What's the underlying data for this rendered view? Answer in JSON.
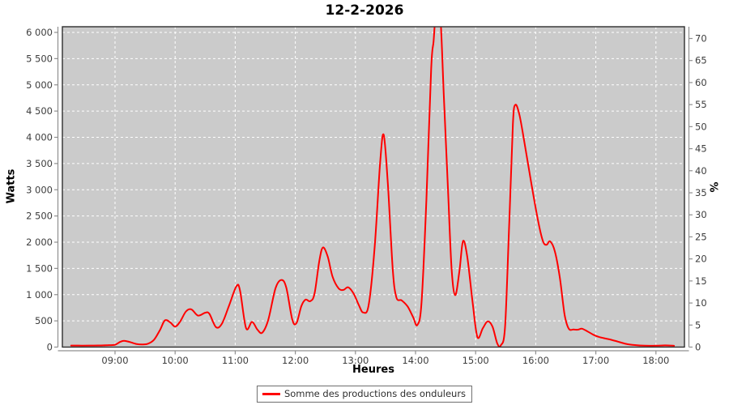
{
  "title": "12-2-2026",
  "legend": {
    "series_label": "Somme des productions des onduleurs",
    "swatch_color": "#ff0000"
  },
  "axes": {
    "y_left": {
      "label": "Watts",
      "tick_values": [
        0,
        500,
        1000,
        1500,
        2000,
        2500,
        3000,
        3500,
        4000,
        4500,
        5000,
        5500,
        6000
      ],
      "tick_labels": [
        "0",
        "500",
        "1 000",
        "1 500",
        "2 000",
        "2 500",
        "3 000",
        "3 500",
        "4 000",
        "4 500",
        "5 000",
        "5 500",
        "6 000"
      ]
    },
    "y_right": {
      "label": "%",
      "tick_values": [
        0,
        5,
        10,
        15,
        20,
        25,
        30,
        35,
        40,
        45,
        50,
        55,
        60,
        65,
        70
      ],
      "tick_labels": [
        "0",
        "5",
        "10",
        "15",
        "20",
        "25",
        "30",
        "35",
        "40",
        "45",
        "50",
        "55",
        "60",
        "65",
        "70"
      ]
    },
    "x": {
      "label": "Heures",
      "tick_values": [
        9,
        10,
        11,
        12,
        13,
        14,
        15,
        16,
        17,
        18
      ],
      "tick_labels": [
        "09:00",
        "10:00",
        "11:00",
        "12:00",
        "13:00",
        "14:00",
        "15:00",
        "16:00",
        "17:00",
        "18:00"
      ]
    }
  },
  "colors": {
    "plot_background": "#cbcbcb",
    "gridline": "#ffffff",
    "series_line": "#ff0000",
    "plot_border": "#2e2e2e",
    "axis_line": "#8f8f8f",
    "tick_label": "#3d3d3d"
  },
  "chart_data": {
    "type": "line",
    "title": "12-2-2026",
    "xlabel": "Heures",
    "ylabel": "Watts",
    "ylabel_secondary": "%",
    "x_unit": "decimal_hours",
    "x_range": [
      8.12,
      18.47
    ],
    "ylim_watts": [
      0,
      6108
    ],
    "ylim_percent": [
      0,
      72
    ],
    "grid": true,
    "legend_position": "bottom",
    "series": [
      {
        "name": "Somme des productions des onduleurs",
        "color": "#ff0000",
        "points_time_watts": [
          [
            8.27,
            30
          ],
          [
            8.45,
            28
          ],
          [
            8.65,
            30
          ],
          [
            8.85,
            34
          ],
          [
            9.0,
            45
          ],
          [
            9.08,
            95
          ],
          [
            9.15,
            120
          ],
          [
            9.25,
            95
          ],
          [
            9.35,
            60
          ],
          [
            9.45,
            50
          ],
          [
            9.55,
            65
          ],
          [
            9.65,
            140
          ],
          [
            9.75,
            330
          ],
          [
            9.83,
            510
          ],
          [
            9.92,
            470
          ],
          [
            10.0,
            390
          ],
          [
            10.08,
            480
          ],
          [
            10.18,
            680
          ],
          [
            10.27,
            720
          ],
          [
            10.38,
            600
          ],
          [
            10.5,
            655
          ],
          [
            10.57,
            635
          ],
          [
            10.68,
            380
          ],
          [
            10.78,
            450
          ],
          [
            10.9,
            800
          ],
          [
            11.02,
            1160
          ],
          [
            11.08,
            1080
          ],
          [
            11.18,
            360
          ],
          [
            11.28,
            480
          ],
          [
            11.37,
            330
          ],
          [
            11.45,
            275
          ],
          [
            11.55,
            520
          ],
          [
            11.67,
            1120
          ],
          [
            11.77,
            1280
          ],
          [
            11.85,
            1130
          ],
          [
            11.95,
            520
          ],
          [
            12.02,
            460
          ],
          [
            12.1,
            780
          ],
          [
            12.17,
            905
          ],
          [
            12.25,
            875
          ],
          [
            12.32,
            1020
          ],
          [
            12.4,
            1650
          ],
          [
            12.46,
            1900
          ],
          [
            12.54,
            1720
          ],
          [
            12.62,
            1340
          ],
          [
            12.72,
            1120
          ],
          [
            12.8,
            1090
          ],
          [
            12.88,
            1140
          ],
          [
            12.97,
            1020
          ],
          [
            13.06,
            790
          ],
          [
            13.13,
            660
          ],
          [
            13.22,
            800
          ],
          [
            13.32,
            1900
          ],
          [
            13.41,
            3500
          ],
          [
            13.47,
            4050
          ],
          [
            13.54,
            3100
          ],
          [
            13.62,
            1500
          ],
          [
            13.68,
            950
          ],
          [
            13.77,
            890
          ],
          [
            13.87,
            770
          ],
          [
            13.96,
            570
          ],
          [
            14.03,
            420
          ],
          [
            14.1,
            850
          ],
          [
            14.18,
            2800
          ],
          [
            14.26,
            5300
          ],
          [
            14.3,
            5830
          ],
          [
            14.34,
            6350
          ],
          [
            14.41,
            6350
          ],
          [
            14.47,
            4800
          ],
          [
            14.54,
            3000
          ],
          [
            14.6,
            1500
          ],
          [
            14.66,
            990
          ],
          [
            14.73,
            1450
          ],
          [
            14.79,
            2020
          ],
          [
            14.86,
            1730
          ],
          [
            14.95,
            850
          ],
          [
            15.03,
            190
          ],
          [
            15.12,
            360
          ],
          [
            15.2,
            490
          ],
          [
            15.28,
            390
          ],
          [
            15.36,
            70
          ],
          [
            15.42,
            35
          ],
          [
            15.49,
            400
          ],
          [
            15.56,
            2400
          ],
          [
            15.62,
            4250
          ],
          [
            15.66,
            4620
          ],
          [
            15.73,
            4420
          ],
          [
            15.82,
            3850
          ],
          [
            15.93,
            3100
          ],
          [
            16.04,
            2400
          ],
          [
            16.12,
            2020
          ],
          [
            16.18,
            1950
          ],
          [
            16.24,
            2015
          ],
          [
            16.32,
            1820
          ],
          [
            16.4,
            1330
          ],
          [
            16.48,
            620
          ],
          [
            16.55,
            350
          ],
          [
            16.63,
            335
          ],
          [
            16.7,
            332
          ],
          [
            16.77,
            350
          ],
          [
            16.86,
            300
          ],
          [
            16.96,
            235
          ],
          [
            17.06,
            190
          ],
          [
            17.2,
            155
          ],
          [
            17.35,
            110
          ],
          [
            17.5,
            62
          ],
          [
            17.65,
            38
          ],
          [
            17.82,
            28
          ],
          [
            18.0,
            26
          ],
          [
            18.15,
            32
          ],
          [
            18.3,
            25
          ]
        ]
      }
    ]
  }
}
